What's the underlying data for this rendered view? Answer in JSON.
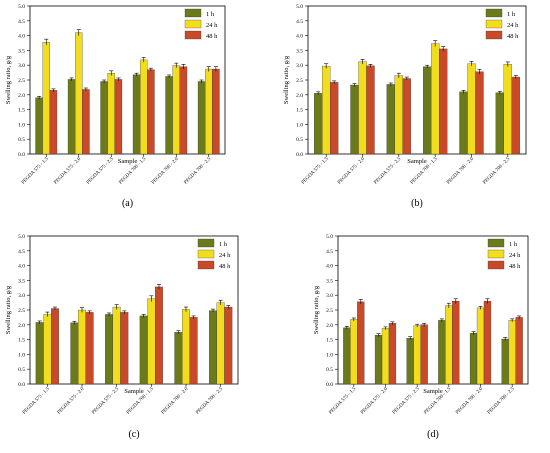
{
  "chart_data": [
    {
      "type": "bar",
      "panel_label": "(a)",
      "categories": [
        "PEGDA 575 - 1.5",
        "PEGDA 575 - 2.0",
        "PEGDA 575 - 2.5",
        "PEGDA 700 - 1.5",
        "PEGDA 700 - 2.0",
        "PEGDA 700 - 2.5"
      ],
      "series": [
        {
          "name": "1 h",
          "values": [
            1.9,
            2.52,
            2.45,
            2.68,
            2.62,
            2.45
          ],
          "errors": [
            0.05,
            0.05,
            0.05,
            0.05,
            0.05,
            0.05
          ]
        },
        {
          "name": "24 h",
          "values": [
            3.78,
            4.1,
            2.73,
            3.18,
            2.99,
            2.87
          ],
          "errors": [
            0.1,
            0.1,
            0.08,
            0.08,
            0.08,
            0.08
          ]
        },
        {
          "name": "48 h",
          "values": [
            2.15,
            2.18,
            2.52,
            2.85,
            2.95,
            2.87
          ],
          "errors": [
            0.05,
            0.05,
            0.05,
            0.05,
            0.08,
            0.08
          ]
        }
      ],
      "xlabel": "Sample",
      "ylabel": "Swelling ratio, g/g",
      "ylim": [
        0,
        5
      ],
      "yticks": [
        "0.0",
        "0.5",
        "1.0",
        "1.5",
        "2.0",
        "2.5",
        "3.0",
        "3.5",
        "4.0",
        "4.5",
        "5.0"
      ],
      "legend_position": "top-right"
    },
    {
      "type": "bar",
      "panel_label": "(b)",
      "categories": [
        "PEGDA 575 - 1.5",
        "PEGDA 575 - 2.0",
        "PEGDA 575 - 2.5",
        "PEGDA 700 - 1.5",
        "PEGDA 700 - 2.0",
        "PEGDA 700 - 2.5"
      ],
      "series": [
        {
          "name": "1 h",
          "values": [
            2.05,
            2.33,
            2.35,
            2.95,
            2.1,
            2.07
          ],
          "errors": [
            0.05,
            0.05,
            0.05,
            0.05,
            0.05,
            0.05
          ]
        },
        {
          "name": "24 h",
          "values": [
            2.97,
            3.12,
            2.65,
            3.73,
            3.05,
            3.03
          ],
          "errors": [
            0.08,
            0.08,
            0.08,
            0.1,
            0.08,
            0.08
          ]
        },
        {
          "name": "48 h",
          "values": [
            2.42,
            2.98,
            2.55,
            3.55,
            2.78,
            2.6
          ],
          "errors": [
            0.05,
            0.05,
            0.05,
            0.08,
            0.08,
            0.05
          ]
        }
      ],
      "xlabel": "Sample",
      "ylabel": "Swelling ratio, g/g",
      "ylim": [
        0,
        5
      ],
      "yticks": [
        "0.0",
        "0.5",
        "1.0",
        "1.5",
        "2.0",
        "2.5",
        "3.0",
        "3.5",
        "4.0",
        "4.5",
        "5.0"
      ],
      "legend_position": "top-right"
    },
    {
      "type": "bar",
      "panel_label": "(c)",
      "categories": [
        "PEGDA 575 - 1.5",
        "PEGDA 575 - 2.0",
        "PEGDA 575 - 2.5",
        "PEGDA 700 - 1.5",
        "PEGDA 700 - 2.0",
        "PEGDA 700 - 2.5"
      ],
      "series": [
        {
          "name": "1 h",
          "values": [
            2.08,
            2.07,
            2.35,
            2.3,
            1.75,
            2.48
          ],
          "errors": [
            0.05,
            0.05,
            0.05,
            0.05,
            0.05,
            0.05
          ]
        },
        {
          "name": "24 h",
          "values": [
            2.35,
            2.5,
            2.6,
            2.88,
            2.52,
            2.75
          ],
          "errors": [
            0.08,
            0.08,
            0.08,
            0.1,
            0.08,
            0.08
          ]
        },
        {
          "name": "48 h",
          "values": [
            2.55,
            2.42,
            2.42,
            3.28,
            2.25,
            2.6
          ],
          "errors": [
            0.05,
            0.05,
            0.05,
            0.08,
            0.05,
            0.05
          ]
        }
      ],
      "xlabel": "Sample",
      "ylabel": "Swelling ratio, g/g",
      "ylim": [
        0,
        5
      ],
      "yticks": [
        "0.0",
        "0.5",
        "1.0",
        "1.5",
        "2.0",
        "2.5",
        "3.0",
        "3.5",
        "4.0",
        "4.5",
        "5.0"
      ],
      "legend_position": "top-right"
    },
    {
      "type": "bar",
      "panel_label": "(d)",
      "categories": [
        "PEGDA 575 - 1.5",
        "PEGDA 575 - 2.0",
        "PEGDA 575 - 2.5",
        "PEGDA 700 - 1.5",
        "PEGDA 700 - 2.0",
        "PEGDA 700 - 2.5"
      ],
      "series": [
        {
          "name": "1 h",
          "values": [
            1.9,
            1.65,
            1.55,
            2.15,
            1.72,
            1.52
          ],
          "errors": [
            0.05,
            0.05,
            0.05,
            0.05,
            0.05,
            0.05
          ]
        },
        {
          "name": "24 h",
          "values": [
            2.18,
            1.88,
            1.97,
            2.65,
            2.57,
            2.15
          ],
          "errors": [
            0.05,
            0.05,
            0.05,
            0.08,
            0.05,
            0.05
          ]
        },
        {
          "name": "48 h",
          "values": [
            2.78,
            2.05,
            2.0,
            2.8,
            2.8,
            2.25
          ],
          "errors": [
            0.08,
            0.05,
            0.05,
            0.08,
            0.08,
            0.05
          ]
        }
      ],
      "xlabel": "Sample",
      "ylabel": "Swelling ratio, g/g",
      "ylim": [
        0,
        5
      ],
      "yticks": [
        "0.0",
        "0.5",
        "1.0",
        "1.5",
        "2.0",
        "2.5",
        "3.0",
        "3.5",
        "4.0",
        "4.5",
        "5.0"
      ],
      "legend_position": "top-right"
    }
  ],
  "colors": {
    "1 h": "#6b7a1a",
    "24 h": "#f2dc1e",
    "48 h": "#c94a2a",
    "axis": "#000000",
    "error": "#000000"
  }
}
